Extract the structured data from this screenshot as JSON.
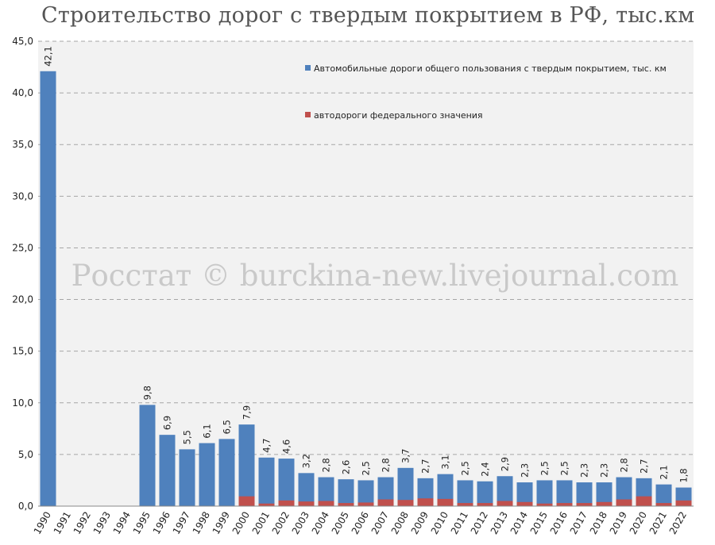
{
  "chart_data": {
    "type": "bar",
    "title": "Строительство дорог с твердым покрытием в РФ, тыс.км",
    "watermark": "Росстат © burckina-new.livejournal.com",
    "ylim": [
      0,
      45
    ],
    "yticks": [
      "0,0",
      "5,0",
      "10,0",
      "15,0",
      "20,0",
      "25,0",
      "30,0",
      "35,0",
      "40,0",
      "45,0"
    ],
    "grid": true,
    "categories": [
      "1990",
      "1991",
      "1992",
      "1993",
      "1994",
      "1995",
      "1996",
      "1997",
      "1998",
      "1999",
      "2000",
      "2001",
      "2002",
      "2003",
      "2004",
      "2005",
      "2006",
      "2007",
      "2008",
      "2009",
      "2010",
      "2011",
      "2012",
      "2013",
      "2014",
      "2015",
      "2016",
      "2017",
      "2018",
      "2019",
      "2020",
      "2021",
      "2022"
    ],
    "series": [
      {
        "name": "Автомобильные дороги общего пользования с твердым покрытием, тыс. км",
        "color": "#4f81bd",
        "values": [
          42.1,
          null,
          null,
          null,
          null,
          9.8,
          6.9,
          5.5,
          6.1,
          6.5,
          7.9,
          4.7,
          4.6,
          3.2,
          2.8,
          2.6,
          2.5,
          2.8,
          3.7,
          2.7,
          3.1,
          2.5,
          2.4,
          2.9,
          2.3,
          2.5,
          2.5,
          2.3,
          2.3,
          2.8,
          2.7,
          2.1,
          1.8
        ],
        "labels": [
          "42,1",
          "",
          "",
          "",
          "",
          "9,8",
          "6,9",
          "5,5",
          "6,1",
          "6,5",
          "7,9",
          "4,7",
          "4,6",
          "3,2",
          "2,8",
          "2,6",
          "2,5",
          "2,8",
          "3,7",
          "2,7",
          "3,1",
          "2,5",
          "2,4",
          "2,9",
          "2,3",
          "2,5",
          "2,5",
          "2,3",
          "2,3",
          "2,8",
          "2,7",
          "2,1",
          "1,8"
        ]
      },
      {
        "name": "автодороги федерального значения",
        "color": "#c0504d",
        "values": [
          null,
          null,
          null,
          null,
          null,
          null,
          null,
          null,
          null,
          null,
          0.95,
          0.25,
          0.55,
          0.45,
          0.5,
          0.3,
          0.35,
          0.65,
          0.6,
          0.75,
          0.7,
          0.3,
          0.3,
          0.5,
          0.4,
          0.25,
          0.3,
          0.3,
          0.4,
          0.65,
          0.95,
          0.3,
          0.55
        ]
      }
    ],
    "legend_position": "top-right",
    "plot_background": "#f2f2f2"
  }
}
